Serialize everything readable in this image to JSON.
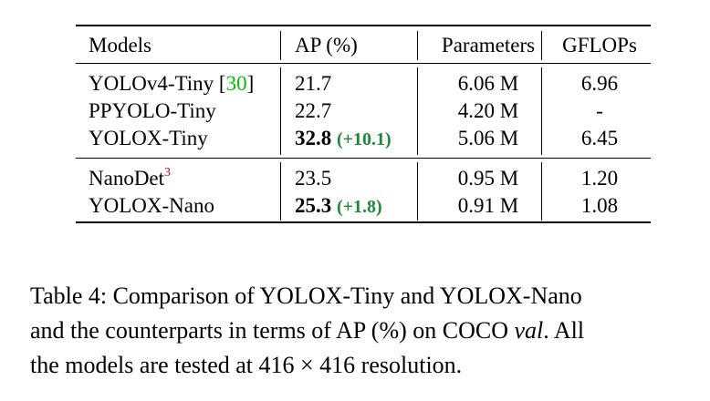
{
  "table": {
    "headers": [
      "Models",
      "AP (%)",
      "Parameters",
      "GFLOPs"
    ],
    "group1": [
      {
        "model": "YOLOv4-Tiny [",
        "cite": "30",
        "cite_close": "]",
        "ap": "21.7",
        "params": "6.06 M",
        "gflops": "6.96"
      },
      {
        "model": "PPYOLO-Tiny",
        "ap": "22.7",
        "params": "4.20 M",
        "gflops": "-"
      },
      {
        "model": "YOLOX-Tiny",
        "ap": "32.8",
        "ap_gain": "(+10.1)",
        "params": "5.06 M",
        "gflops": "6.45"
      }
    ],
    "group2": [
      {
        "model": "NanoDet",
        "sup": "3",
        "ap": "23.5",
        "params": "0.95 M",
        "gflops": "1.20"
      },
      {
        "model": "YOLOX-Nano",
        "ap": "25.3",
        "ap_gain": "(+1.8)",
        "params": "0.91 M",
        "gflops": "1.08"
      }
    ]
  },
  "caption": {
    "line1": "Table 4: Comparison of YOLOX-Tiny and YOLOX-Nano",
    "line2a": "and the counterparts in terms of AP (%) on COCO ",
    "line2b": "val",
    "line2c": ".  All",
    "line3": "the models are tested at 416 × 416 resolution."
  }
}
